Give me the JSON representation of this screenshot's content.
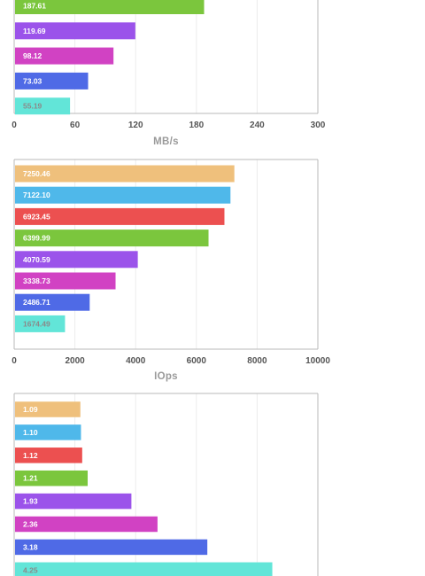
{
  "colors": [
    "#efc07c",
    "#4fb8ea",
    "#ec5050",
    "#7bc63d",
    "#9b53ea",
    "#d142c3",
    "#4f6ae6",
    "#62e5d8"
  ],
  "chart_data": [
    {
      "type": "bar",
      "orientation": "horizontal",
      "values": [
        187.61,
        119.69,
        98.12,
        73.03,
        55.19
      ],
      "labels": [
        "187.61",
        "119.69",
        "98.12",
        "73.03",
        "55.19"
      ],
      "color_index": [
        3,
        4,
        5,
        6,
        7
      ],
      "xlim": [
        0,
        300
      ],
      "xticks": [
        "0",
        "60",
        "120",
        "180",
        "240",
        "300"
      ],
      "xlabel": "MB/s",
      "grid": true
    },
    {
      "type": "bar",
      "orientation": "horizontal",
      "values": [
        7250.46,
        7122.1,
        6923.45,
        6399.99,
        4070.59,
        3338.73,
        2486.71,
        1674.49
      ],
      "labels": [
        "7250.46",
        "7122.10",
        "6923.45",
        "6399.99",
        "4070.59",
        "3338.73",
        "2486.71",
        "1674.49"
      ],
      "color_index": [
        0,
        1,
        2,
        3,
        4,
        5,
        6,
        7
      ],
      "xlim": [
        0,
        10000
      ],
      "xticks": [
        "0",
        "2000",
        "4000",
        "6000",
        "8000",
        "10000"
      ],
      "xlabel": "IOps",
      "grid": true
    },
    {
      "type": "bar",
      "orientation": "horizontal",
      "values": [
        1.09,
        1.1,
        1.12,
        1.21,
        1.93,
        2.36,
        3.18,
        4.25
      ],
      "labels": [
        "1.09",
        "1.10",
        "1.12",
        "1.21",
        "1.93",
        "2.36",
        "3.18",
        "4.25"
      ],
      "color_index": [
        0,
        1,
        2,
        3,
        4,
        5,
        6,
        7
      ],
      "xlim": [
        0,
        5
      ],
      "grid": true
    }
  ]
}
